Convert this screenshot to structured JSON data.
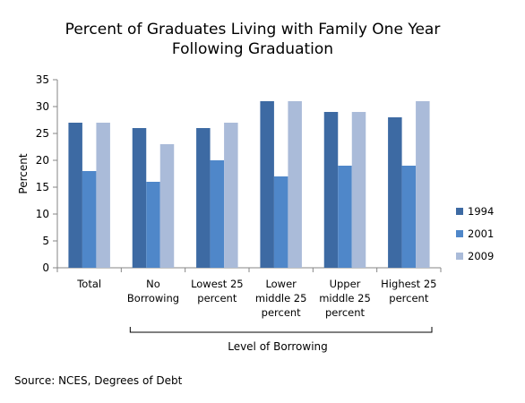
{
  "chart_data": {
    "type": "bar",
    "title_lines": [
      "Percent of Graduates Living with Family One Year",
      "Following Graduation"
    ],
    "ylabel": "Percent",
    "xlabel": "Level of Borrowing",
    "ylim": [
      0,
      35
    ],
    "yticks": [
      0,
      5,
      10,
      15,
      20,
      25,
      30,
      35
    ],
    "categories": [
      [
        "Total"
      ],
      [
        "No",
        "Borrowing"
      ],
      [
        "Lowest 25",
        "percent"
      ],
      [
        "Lower",
        "middle 25",
        "percent"
      ],
      [
        "Upper",
        "middle 25",
        "percent"
      ],
      [
        "Highest 25",
        "percent"
      ]
    ],
    "series": [
      {
        "name": "1994",
        "color": "#3d6aa3",
        "values": [
          27,
          26,
          26,
          31,
          29,
          28
        ]
      },
      {
        "name": "2001",
        "color": "#4f87c9",
        "values": [
          18,
          16,
          20,
          17,
          19,
          19
        ]
      },
      {
        "name": "2009",
        "color": "#aabbd9",
        "values": [
          27,
          23,
          27,
          31,
          29,
          31
        ]
      }
    ],
    "grid": false,
    "legend_position": "right",
    "bracket": {
      "from_category": 1,
      "to_category": 5
    }
  },
  "source": "Source: NCES, Degrees of Debt"
}
